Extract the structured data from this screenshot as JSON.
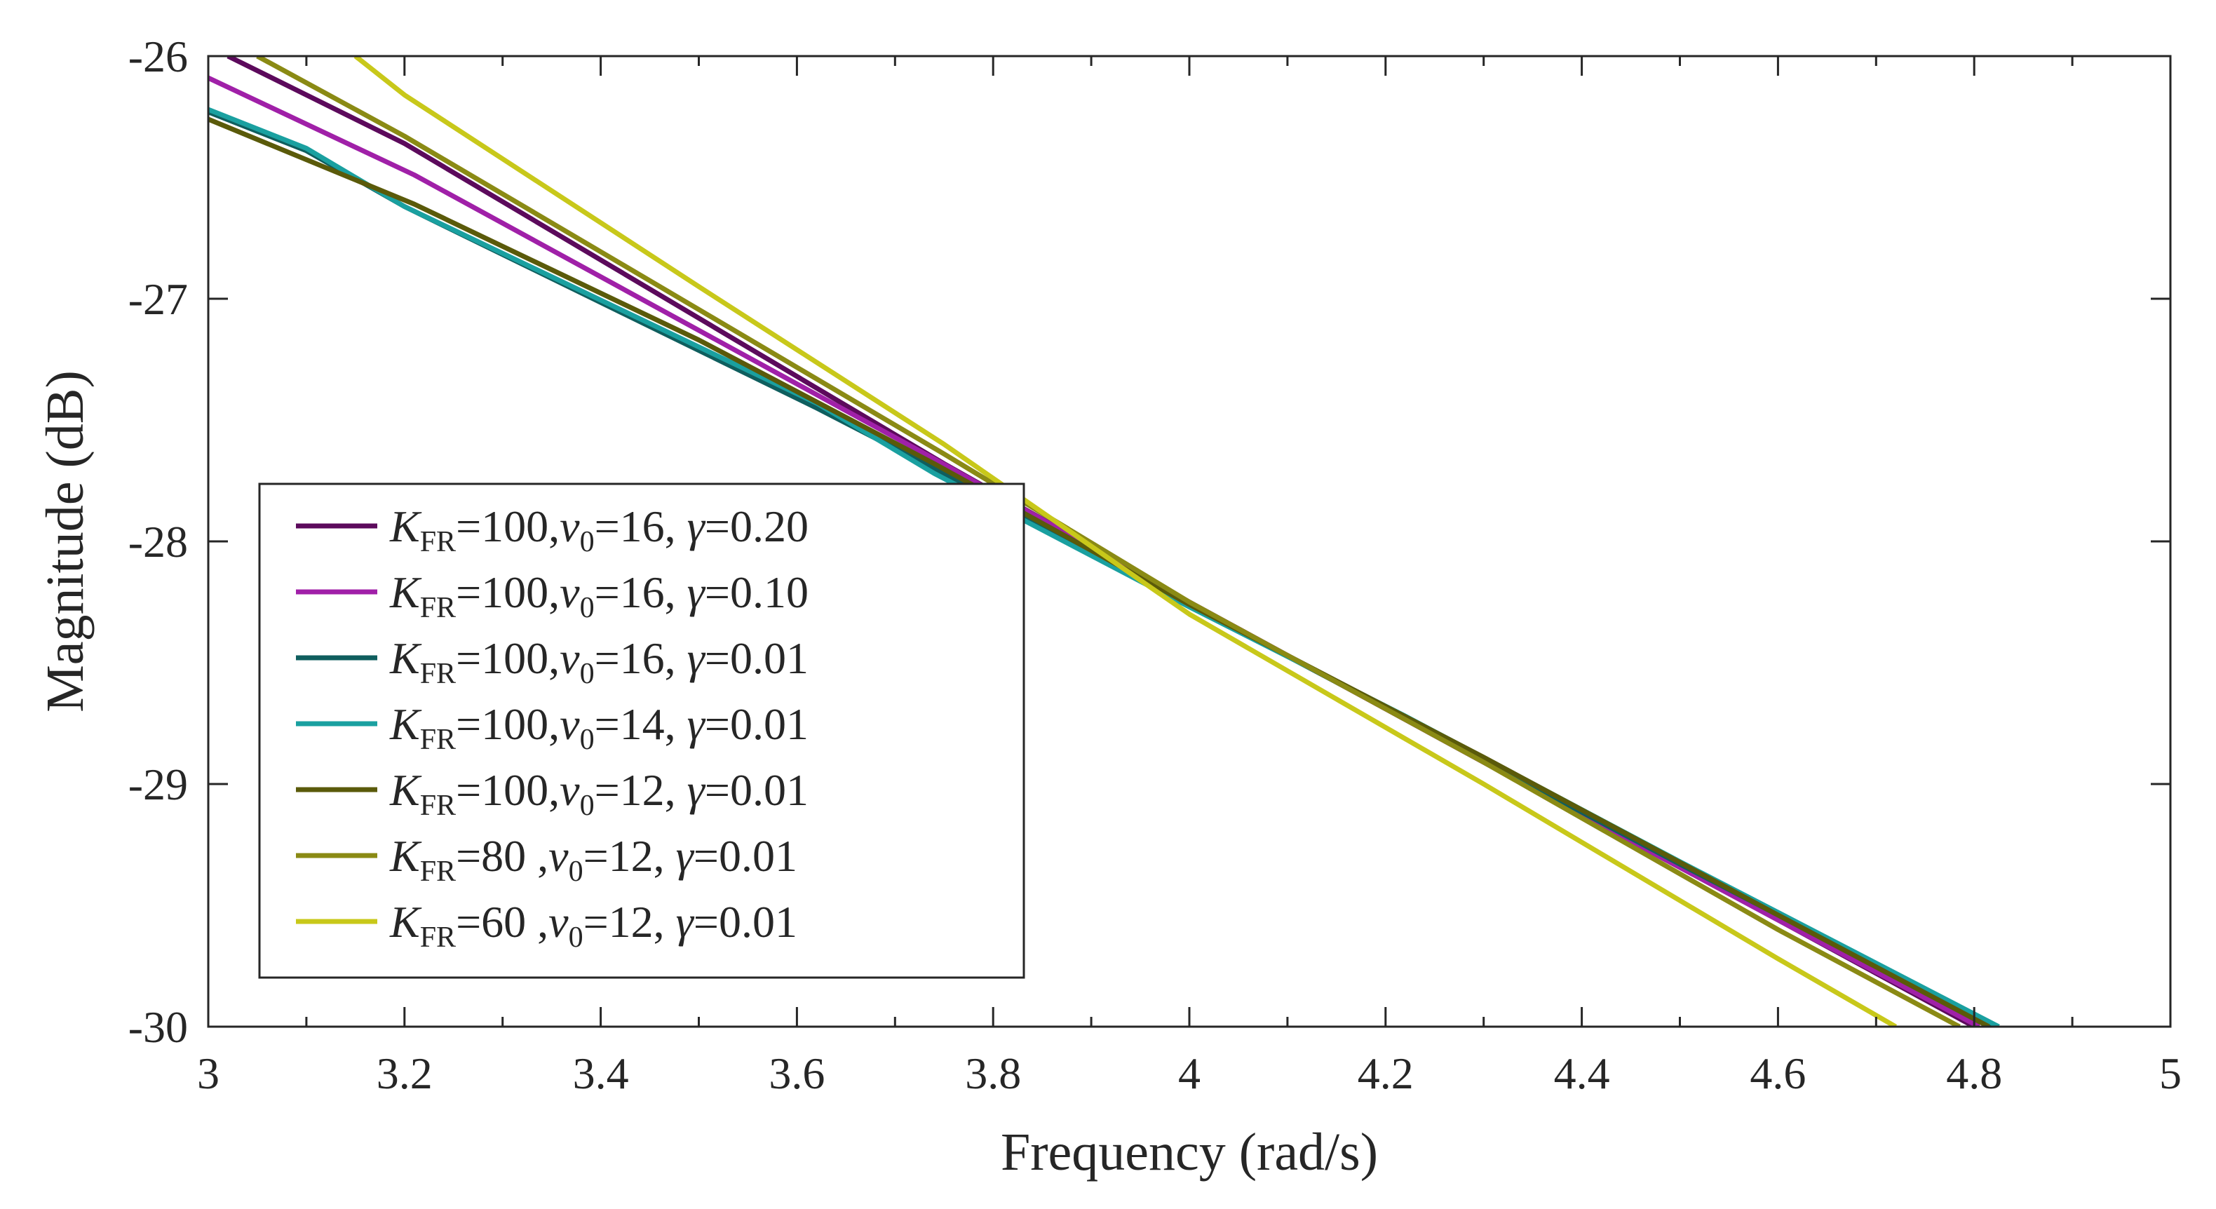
{
  "chart_data": {
    "type": "line",
    "title": "",
    "xlabel": "Frequency (rad/s)",
    "ylabel": "Magnitude (dB)",
    "xlim": [
      3,
      5
    ],
    "ylim": [
      -30,
      -26
    ],
    "x_ticks": [
      "3",
      "3.2",
      "3.4",
      "3.6",
      "3.8",
      "4",
      "4.2",
      "4.4",
      "4.6",
      "4.8",
      "5"
    ],
    "y_ticks": [
      "-26",
      "-27",
      "-28",
      "-29",
      "-30"
    ],
    "grid": false,
    "legend_position": "middle-left",
    "series": [
      {
        "name": "K_FR=100,v_0=16, γ=0.20",
        "color": "#5c0a5c",
        "legend": {
          "k": "100",
          "gap": "",
          "v0": "16",
          "gamma": "0.20"
        },
        "x": [
          3.02,
          3.2,
          3.75,
          4.0,
          4.3,
          4.6,
          4.8
        ],
        "y": [
          -26.0,
          -26.36,
          -27.68,
          -28.25,
          -28.91,
          -29.56,
          -30.0
        ]
      },
      {
        "name": "K_FR=100,v_0=16, γ=0.10",
        "color": "#a020a8",
        "legend": {
          "k": "100",
          "gap": "",
          "v0": "16",
          "gamma": "0.10"
        },
        "x": [
          3.0,
          3.21,
          3.74,
          4.0,
          4.3,
          4.6,
          4.805
        ],
        "y": [
          -26.09,
          -26.49,
          -27.66,
          -28.25,
          -28.91,
          -29.56,
          -30.0
        ]
      },
      {
        "name": "K_FR=100,v_0=16, γ=0.01",
        "color": "#0f5e5e",
        "legend": {
          "k": "100",
          "gap": "",
          "v0": "16",
          "gamma": "0.01"
        },
        "x": [
          3.0,
          3.1,
          3.2,
          3.62,
          3.74,
          4.0,
          4.22,
          4.5,
          4.82
        ],
        "y": [
          -26.23,
          -26.39,
          -26.62,
          -27.45,
          -27.7,
          -28.26,
          -28.73,
          -29.33,
          -30.0
        ]
      },
      {
        "name": "K_FR=100,v_0=14, γ=0.01",
        "color": "#1aa0a0",
        "legend": {
          "k": "100",
          "gap": "",
          "v0": "14",
          "gamma": "0.01"
        },
        "x": [
          3.0,
          3.1,
          3.2,
          3.62,
          3.74,
          4.0,
          4.22,
          4.5,
          4.825
        ],
        "y": [
          -26.22,
          -26.38,
          -26.62,
          -27.43,
          -27.72,
          -28.27,
          -28.72,
          -29.32,
          -30.0
        ]
      },
      {
        "name": "K_FR=100,v_0=12, γ=0.01",
        "color": "#5a5a0a",
        "legend": {
          "k": "100",
          "gap": "",
          "v0": "12",
          "gamma": "0.01"
        },
        "x": [
          3.0,
          3.21,
          3.5,
          3.74,
          4.0,
          4.3,
          4.6,
          4.815
        ],
        "y": [
          -26.26,
          -26.61,
          -27.17,
          -27.68,
          -28.26,
          -28.89,
          -29.54,
          -30.0
        ]
      },
      {
        "name": "K_FR=80 ,v_0=12, γ=0.01",
        "color": "#8a8a14",
        "legend": {
          "k": "80",
          "gap": " ",
          "v0": "12",
          "gamma": "0.01"
        },
        "x": [
          3.05,
          3.2,
          3.75,
          4.0,
          4.3,
          4.6,
          4.785
        ],
        "y": [
          -26.0,
          -26.33,
          -27.64,
          -28.25,
          -28.91,
          -29.6,
          -30.0
        ]
      },
      {
        "name": "K_FR=60 ,v_0=12, γ=0.01",
        "color": "#c8c81a",
        "legend": {
          "k": "60",
          "gap": " ",
          "v0": "12",
          "gamma": "0.01"
        },
        "x": [
          3.15,
          3.2,
          3.5,
          3.75,
          4.0,
          4.3,
          4.6,
          4.72
        ],
        "y": [
          -26.0,
          -26.16,
          -26.95,
          -27.6,
          -28.3,
          -29.0,
          -29.72,
          -30.0
        ]
      }
    ]
  }
}
